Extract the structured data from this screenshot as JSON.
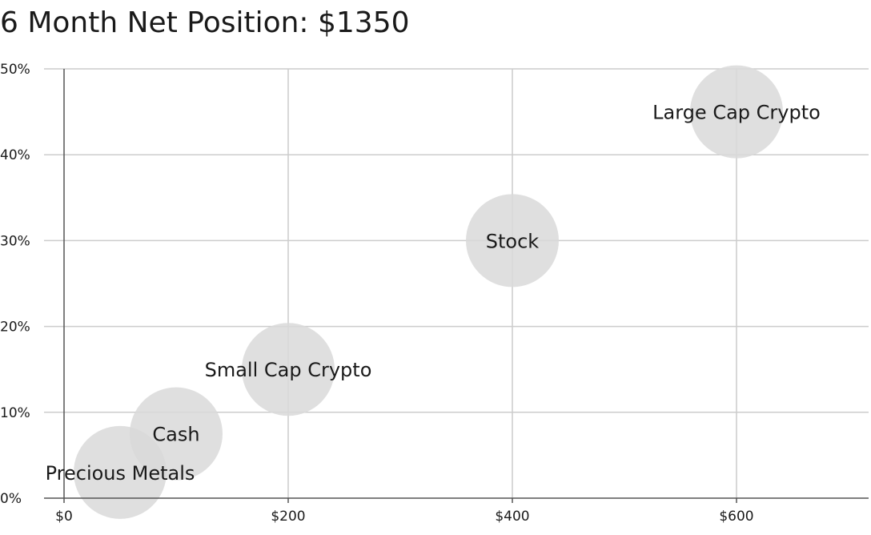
{
  "chart_data": {
    "type": "scatter",
    "title": "6 Month Net Position: $1350",
    "xlabel": "",
    "ylabel": "",
    "xlim": [
      0,
      720
    ],
    "ylim": [
      0,
      50
    ],
    "x_ticks": [
      0,
      200,
      400,
      600
    ],
    "x_tick_labels": [
      "$0",
      "$200",
      "$400",
      "$600"
    ],
    "y_ticks": [
      0,
      10,
      20,
      30,
      40,
      50
    ],
    "y_tick_labels": [
      "0%",
      "10%",
      "20%",
      "30%",
      "40%",
      "50%"
    ],
    "grid": true,
    "bubble_color": "#d9d9d9",
    "points": [
      {
        "label": "Precious Metals",
        "x": 50,
        "y": 3
      },
      {
        "label": "Cash",
        "x": 100,
        "y": 7.5
      },
      {
        "label": "Small Cap Crypto",
        "x": 200,
        "y": 15
      },
      {
        "label": "Stock",
        "x": 400,
        "y": 30
      },
      {
        "label": "Large Cap Crypto",
        "x": 600,
        "y": 45
      }
    ]
  }
}
